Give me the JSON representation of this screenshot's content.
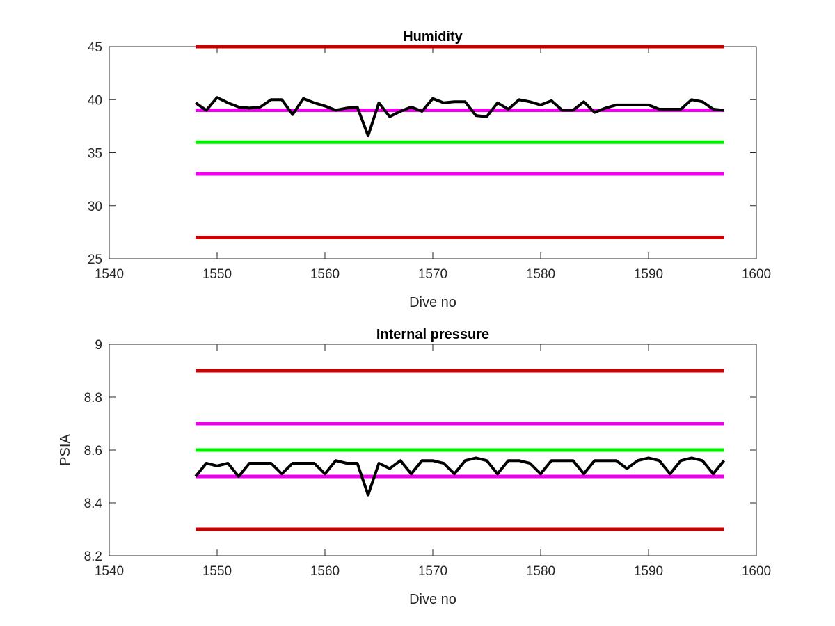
{
  "figure": {
    "background": "#ffffff"
  },
  "chart_data": [
    {
      "type": "line",
      "title": "Humidity",
      "xlabel": "Dive no",
      "ylabel": "",
      "xlim": [
        1540,
        1600
      ],
      "ylim": [
        25,
        45
      ],
      "xticks": [
        1540,
        1550,
        1560,
        1570,
        1580,
        1590,
        1600
      ],
      "yticks": [
        25,
        30,
        35,
        40,
        45
      ],
      "grid": false,
      "legend": "none",
      "threshold_lines": [
        {
          "y": 45,
          "x_range": [
            1548,
            1597
          ],
          "color": "#cc0000"
        },
        {
          "y": 39,
          "x_range": [
            1548,
            1597
          ],
          "color": "#ee00ee"
        },
        {
          "y": 36,
          "x_range": [
            1548,
            1597
          ],
          "color": "#00ee00"
        },
        {
          "y": 33,
          "x_range": [
            1548,
            1597
          ],
          "color": "#ee00ee"
        },
        {
          "y": 27,
          "x_range": [
            1548,
            1597
          ],
          "color": "#cc0000"
        }
      ],
      "series": [
        {
          "color": "#000000",
          "x": [
            1548,
            1549,
            1550,
            1551,
            1552,
            1553,
            1554,
            1555,
            1556,
            1557,
            1558,
            1559,
            1560,
            1561,
            1562,
            1563,
            1564,
            1565,
            1566,
            1567,
            1568,
            1569,
            1570,
            1571,
            1572,
            1573,
            1574,
            1575,
            1576,
            1577,
            1578,
            1579,
            1580,
            1581,
            1582,
            1583,
            1584,
            1585,
            1586,
            1587,
            1588,
            1589,
            1590,
            1591,
            1592,
            1593,
            1594,
            1595,
            1596,
            1597
          ],
          "y": [
            39.7,
            39.0,
            40.2,
            39.7,
            39.3,
            39.2,
            39.3,
            40.0,
            40.0,
            38.6,
            40.1,
            39.7,
            39.4,
            39.0,
            39.2,
            39.3,
            36.6,
            39.7,
            38.4,
            38.9,
            39.3,
            38.9,
            40.1,
            39.7,
            39.8,
            39.8,
            38.5,
            38.4,
            39.7,
            39.1,
            40.0,
            39.8,
            39.5,
            39.9,
            39.0,
            39.0,
            39.8,
            38.8,
            39.2,
            39.5,
            39.5,
            39.5,
            39.5,
            39.1,
            39.1,
            39.1,
            40.0,
            39.8,
            39.1,
            39.0
          ]
        }
      ]
    },
    {
      "type": "line",
      "title": "Internal pressure",
      "xlabel": "Dive no",
      "ylabel": "PSIA",
      "xlim": [
        1540,
        1600
      ],
      "ylim": [
        8.2,
        9
      ],
      "xticks": [
        1540,
        1550,
        1560,
        1570,
        1580,
        1590,
        1600
      ],
      "yticks": [
        8.2,
        8.4,
        8.6,
        8.8,
        9
      ],
      "grid": false,
      "legend": "none",
      "threshold_lines": [
        {
          "y": 8.9,
          "x_range": [
            1548,
            1597
          ],
          "color": "#cc0000"
        },
        {
          "y": 8.7,
          "x_range": [
            1548,
            1597
          ],
          "color": "#ee00ee"
        },
        {
          "y": 8.6,
          "x_range": [
            1548,
            1597
          ],
          "color": "#00ee00"
        },
        {
          "y": 8.5,
          "x_range": [
            1548,
            1597
          ],
          "color": "#ee00ee"
        },
        {
          "y": 8.3,
          "x_range": [
            1548,
            1597
          ],
          "color": "#cc0000"
        }
      ],
      "series": [
        {
          "color": "#000000",
          "x": [
            1548,
            1549,
            1550,
            1551,
            1552,
            1553,
            1554,
            1555,
            1556,
            1557,
            1558,
            1559,
            1560,
            1561,
            1562,
            1563,
            1564,
            1565,
            1566,
            1567,
            1568,
            1569,
            1570,
            1571,
            1572,
            1573,
            1574,
            1575,
            1576,
            1577,
            1578,
            1579,
            1580,
            1581,
            1582,
            1583,
            1584,
            1585,
            1586,
            1587,
            1588,
            1589,
            1590,
            1591,
            1592,
            1593,
            1594,
            1595,
            1596,
            1597
          ],
          "y": [
            8.5,
            8.55,
            8.54,
            8.55,
            8.5,
            8.55,
            8.55,
            8.55,
            8.51,
            8.55,
            8.55,
            8.55,
            8.51,
            8.56,
            8.55,
            8.55,
            8.43,
            8.55,
            8.53,
            8.56,
            8.51,
            8.56,
            8.56,
            8.55,
            8.51,
            8.56,
            8.57,
            8.56,
            8.51,
            8.56,
            8.56,
            8.55,
            8.51,
            8.56,
            8.56,
            8.56,
            8.51,
            8.56,
            8.56,
            8.56,
            8.53,
            8.56,
            8.57,
            8.56,
            8.51,
            8.56,
            8.57,
            8.56,
            8.51,
            8.56
          ]
        }
      ]
    }
  ]
}
